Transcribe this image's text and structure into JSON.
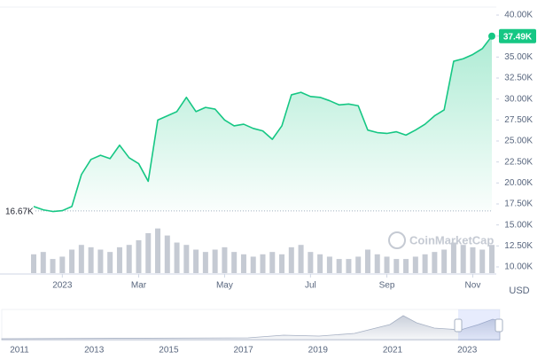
{
  "chart_data": {
    "type": "line",
    "color": "#16c784",
    "categories": [
      null,
      null,
      null,
      "2023",
      null,
      null,
      null,
      null,
      null,
      null,
      null,
      "Mar",
      null,
      null,
      null,
      null,
      null,
      null,
      null,
      null,
      "May",
      null,
      null,
      null,
      null,
      null,
      null,
      null,
      null,
      "Jul",
      null,
      null,
      null,
      null,
      null,
      null,
      null,
      "Sep",
      null,
      null,
      null,
      null,
      null,
      null,
      null,
      null,
      "Nov",
      null,
      null
    ],
    "series": [
      {
        "values": [
          17200,
          16800,
          16600,
          16700,
          17200,
          21000,
          22800,
          23300,
          22900,
          24500,
          23000,
          22300,
          20200,
          27500,
          28000,
          28500,
          30200,
          28500,
          29000,
          28800,
          27500,
          26800,
          27000,
          26500,
          26200,
          25200,
          26800,
          30500,
          30800,
          30300,
          30200,
          29800,
          29300,
          29400,
          29200,
          26300,
          26000,
          25900,
          26100,
          25700,
          26300,
          27000,
          28000,
          28700,
          34500,
          34800,
          35300,
          36000,
          37490
        ],
        "value_labels": [
          null,
          null,
          null,
          null,
          null,
          null,
          null,
          null,
          null,
          null,
          null,
          null,
          null,
          null,
          null,
          null,
          null,
          null,
          null,
          null,
          null,
          null,
          null,
          null,
          null,
          null,
          null,
          null,
          null,
          null,
          null,
          null,
          null,
          null,
          null,
          null,
          null,
          null,
          null,
          null,
          null,
          null,
          null,
          null,
          null,
          null,
          null,
          null,
          "37.49K"
        ]
      },
      {
        "axis": "y2",
        "color": "#c5cad3",
        "values": [
          40,
          45,
          30,
          35,
          50,
          60,
          55,
          50,
          45,
          55,
          60,
          70,
          85,
          95,
          80,
          65,
          60,
          50,
          45,
          50,
          55,
          45,
          40,
          35,
          40,
          45,
          40,
          55,
          60,
          45,
          40,
          35,
          30,
          30,
          35,
          50,
          40,
          35,
          30,
          30,
          35,
          40,
          45,
          50,
          65,
          60,
          55,
          50,
          60
        ]
      }
    ],
    "reference": {
      "value": 16670,
      "label": "16.67K"
    },
    "ylim": [
      10000,
      40000
    ],
    "yticks": [
      {
        "value": 10000,
        "label": "10.00K"
      },
      {
        "value": 12500,
        "label": "12.50K"
      },
      {
        "value": 15000,
        "label": "15.00K"
      },
      {
        "value": 17500,
        "label": "17.50K"
      },
      {
        "value": 20000,
        "label": "20.00K"
      },
      {
        "value": 22500,
        "label": "22.50K"
      },
      {
        "value": 25000,
        "label": "25.00K"
      },
      {
        "value": 27500,
        "label": "27.50K"
      },
      {
        "value": 30000,
        "label": "30.00K"
      },
      {
        "value": 32500,
        "label": "32.50K"
      },
      {
        "value": 35000,
        "label": "35.00K"
      },
      {
        "value": 37500,
        "label": "37.50K"
      },
      {
        "value": 40000,
        "label": "40.00K"
      }
    ],
    "y2lim": [
      0,
      100
    ],
    "grid": false,
    "currency": "USD",
    "watermark": "CoinMarketCap",
    "navigator_xticks": [
      "2011",
      "2013",
      "2015",
      "2017",
      "2019",
      "2021",
      "2023"
    ]
  }
}
